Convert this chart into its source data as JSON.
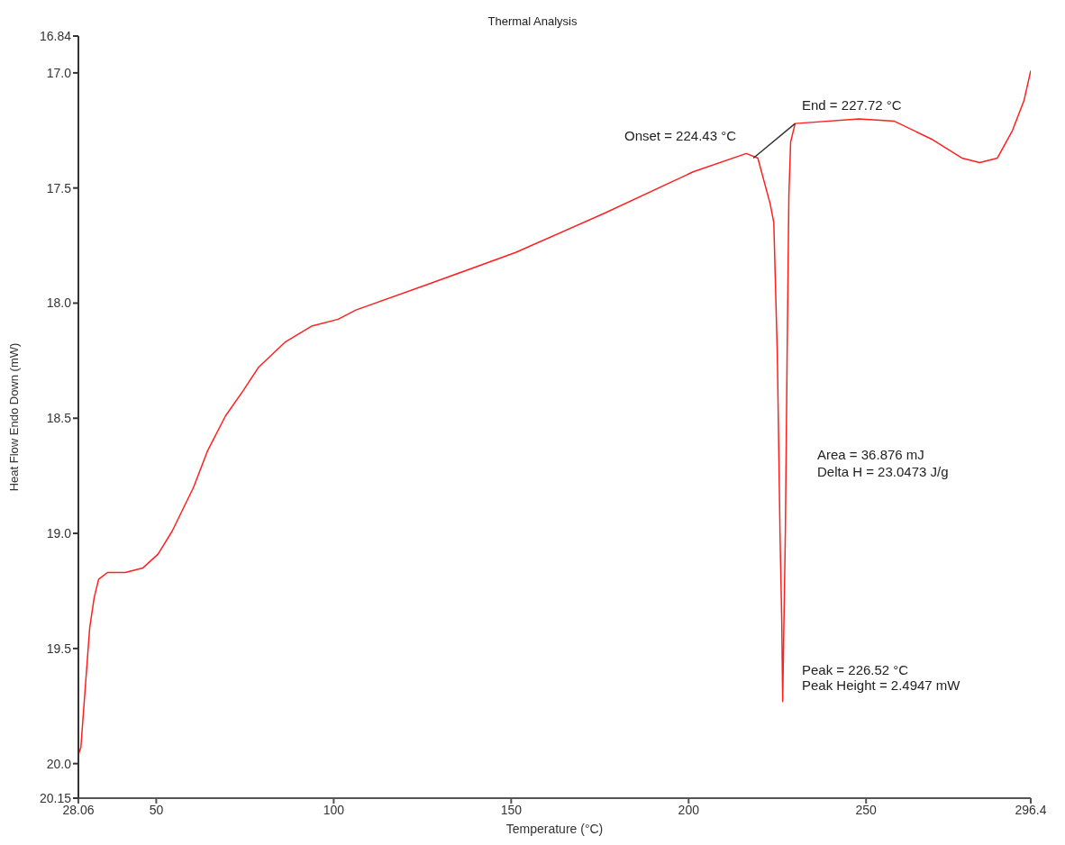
{
  "chart_data": {
    "type": "line",
    "title": "Thermal Analysis",
    "xlabel": "Temperature (°C)",
    "ylabel": "Heat Flow Endo Down (mW)",
    "xlim": [
      28.06,
      296.4
    ],
    "xticks": [
      28.06,
      50,
      100,
      150,
      200,
      250,
      296.4
    ],
    "ylim": [
      20.15,
      16.84
    ],
    "yticks": [
      16.84,
      {
        "value": 17,
        "label": "17.0"
      },
      17.5,
      {
        "value": 18,
        "label": "18.0"
      },
      18.5,
      {
        "value": 19,
        "label": "19.0"
      },
      19.5,
      {
        "value": 20,
        "label": "20.0"
      },
      20.15
    ],
    "grid": false,
    "marker": "none",
    "line_style": "solid",
    "series": [
      {
        "color": "#ff2020",
        "x": [
          28.06,
          28.75,
          30,
          31.25,
          32.5,
          33.75,
          36.25,
          41.25,
          46.25,
          50.5,
          54.5,
          60.5,
          64.5,
          69.5,
          74.5,
          78.75,
          86.25,
          93.75,
          101.25,
          106.25,
          126.25,
          151.25,
          176.25,
          201.25,
          216.25,
          219.5,
          223,
          224,
          225,
          225.75,
          226.25,
          226.5,
          227.25,
          227.75,
          228.25,
          228.75,
          230,
          248,
          258,
          268.75,
          277,
          282,
          287,
          291.25,
          294.5,
          296.4
        ],
        "values": [
          19.96,
          19.93,
          19.67,
          19.41,
          19.28,
          19.2,
          19.17,
          19.17,
          19.15,
          19.09,
          18.99,
          18.8,
          18.64,
          18.49,
          18.38,
          18.28,
          18.17,
          18.1,
          18.07,
          18.03,
          17.92,
          17.78,
          17.61,
          17.43,
          17.35,
          17.37,
          17.57,
          17.65,
          18.23,
          19.0,
          19.39,
          19.73,
          19.0,
          18.23,
          17.53,
          17.3,
          17.22,
          17.2,
          17.21,
          17.29,
          17.37,
          17.39,
          17.37,
          17.25,
          17.12,
          16.99
        ]
      },
      {
        "color": "#333333",
        "x": [
          218.25,
          230
        ],
        "values": [
          17.37,
          17.22
        ]
      }
    ],
    "annotations": [
      "Onset = 224.43 °C",
      "End = 227.72 °C",
      "Area = 36.876 mJ",
      "Delta H = 23.0473 J/g",
      "Peak = 226.52 °C",
      "Peak Height = 2.4947 mW"
    ]
  }
}
